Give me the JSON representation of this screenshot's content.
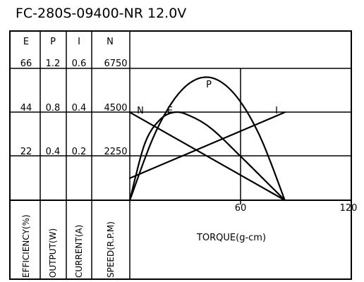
{
  "title": "FC-280S-09400-NR   12.0V",
  "chart_data": {
    "type": "line",
    "title": "FC-280S-09400-NR   12.0V",
    "xlabel": "TORQUE(g-cm)",
    "x_ticks": [
      "60",
      "120"
    ],
    "xlim": [
      0,
      120
    ],
    "columns": [
      {
        "header": "E",
        "ticks": [
          "66",
          "44",
          "22"
        ],
        "label": "EFFICIENCY(%)",
        "max": 66
      },
      {
        "header": "P",
        "ticks": [
          "1.2",
          "0.8",
          "0.4"
        ],
        "label": "OUTPUT(W)",
        "max": 1.2
      },
      {
        "header": "I",
        "ticks": [
          "0.6",
          "0.4",
          "0.2"
        ],
        "label": "CURRENT(A)",
        "max": 0.6
      },
      {
        "header": "N",
        "ticks": [
          "6750",
          "4500",
          "2250"
        ],
        "label": "SPEED(R.P.M)",
        "max": 6750
      }
    ],
    "series": [
      {
        "name": "N",
        "x": [
          0,
          84
        ],
        "y": [
          4500,
          0
        ]
      },
      {
        "name": "I",
        "x": [
          0,
          84
        ],
        "y": [
          0.1,
          0.4
        ]
      },
      {
        "name": "P",
        "x": [
          0,
          14,
          28,
          42,
          56,
          70,
          84
        ],
        "y": [
          0,
          0.62,
          1.0,
          1.12,
          0.98,
          0.6,
          0
        ]
      },
      {
        "name": "E",
        "x": [
          0,
          8,
          16,
          24,
          32,
          44,
          60,
          72,
          84
        ],
        "y": [
          0,
          28,
          40,
          44,
          42.5,
          36,
          22,
          11,
          0
        ]
      }
    ]
  }
}
